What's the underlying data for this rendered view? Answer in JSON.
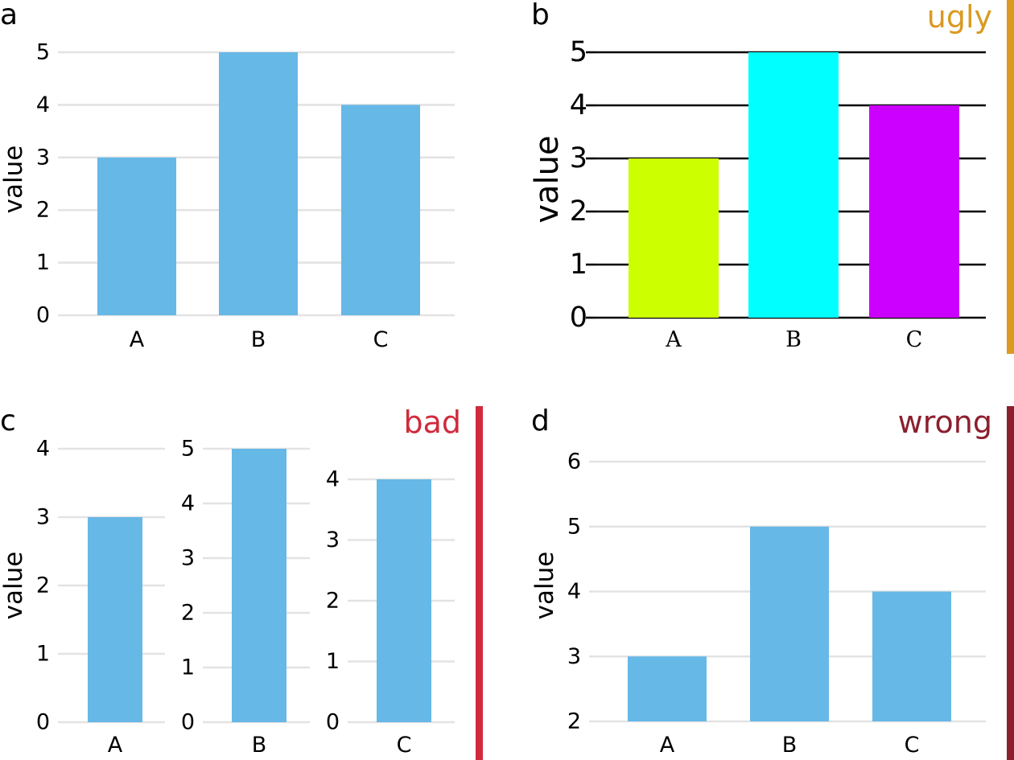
{
  "figure": {
    "panel_labels": [
      "a",
      "b",
      "c",
      "d"
    ],
    "tags": {
      "b": "ugly",
      "c": "bad",
      "d": "wrong"
    },
    "colors": {
      "bar": "#66B8E7",
      "grid": "#E3E3E3",
      "ugly": "#DA9A22",
      "bad": "#D12A3C",
      "wrong": "#8C1F2E",
      "ugly_bars": [
        "#CCFF00",
        "#00FFFF",
        "#CC00FF"
      ]
    }
  },
  "chart_data": [
    {
      "panel": "a",
      "type": "bar",
      "categories": [
        "A",
        "B",
        "C"
      ],
      "values": [
        3,
        5,
        4
      ],
      "ylabel": "value",
      "ylim": [
        0,
        5
      ],
      "yticks": [
        0,
        1,
        2,
        3,
        4,
        5
      ],
      "grid": true
    },
    {
      "panel": "b",
      "type": "bar",
      "tag": "ugly",
      "categories": [
        "A",
        "B",
        "C"
      ],
      "values": [
        3,
        5,
        4
      ],
      "ylabel": "value",
      "ylim": [
        0,
        5
      ],
      "yticks": [
        0,
        1,
        2,
        3,
        4,
        5
      ],
      "grid": true
    },
    {
      "panel": "c",
      "type": "bar",
      "tag": "bad",
      "subplots": [
        {
          "category": "A",
          "value": 3,
          "ylim": [
            0,
            4
          ],
          "yticks": [
            0,
            1,
            2,
            3,
            4
          ]
        },
        {
          "category": "B",
          "value": 5,
          "ylim": [
            0,
            5
          ],
          "yticks": [
            0,
            1,
            2,
            3,
            4,
            5
          ]
        },
        {
          "category": "C",
          "value": 4,
          "ylim": [
            0,
            4
          ],
          "yticks": [
            0,
            1,
            2,
            3,
            4
          ]
        }
      ],
      "ylabel": "value",
      "grid": true
    },
    {
      "panel": "d",
      "type": "bar",
      "tag": "wrong",
      "categories": [
        "A",
        "B",
        "C"
      ],
      "values": [
        3,
        5,
        4
      ],
      "ylabel": "value",
      "ylim": [
        2,
        6
      ],
      "yticks": [
        2,
        3,
        4,
        5,
        6
      ],
      "grid": true
    }
  ]
}
